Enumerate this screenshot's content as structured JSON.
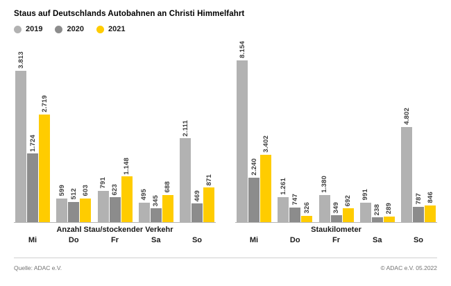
{
  "title": "Staus auf Deutschlands Autobahnen an Christi Himmelfahrt",
  "legend": [
    {
      "label": "2019",
      "color": "#b2b2b2"
    },
    {
      "label": "2020",
      "color": "#8c8c8c"
    },
    {
      "label": "2021",
      "color": "#ffcc00"
    }
  ],
  "chart_data": [
    {
      "type": "bar",
      "title": "Anzahl Stau/stockender Verkehr",
      "categories": [
        "Mi",
        "Do",
        "Fr",
        "Sa",
        "So"
      ],
      "series": [
        {
          "name": "2019",
          "color": "#b2b2b2",
          "values": [
            3813,
            599,
            791,
            495,
            2111
          ],
          "labels": [
            "3.813",
            "599",
            "791",
            "495",
            "2.111"
          ]
        },
        {
          "name": "2020",
          "color": "#8c8c8c",
          "values": [
            1724,
            512,
            623,
            345,
            469
          ],
          "labels": [
            "1.724",
            "512",
            "623",
            "345",
            "469"
          ]
        },
        {
          "name": "2021",
          "color": "#ffcc00",
          "values": [
            2719,
            603,
            1148,
            688,
            871
          ],
          "labels": [
            "2.719",
            "603",
            "1.148",
            "688",
            "871"
          ]
        }
      ],
      "legend_position": "top",
      "grid": false,
      "value_labels_rotated": true
    },
    {
      "type": "bar",
      "title": "Staukilometer",
      "categories": [
        "Mi",
        "Do",
        "Fr",
        "Sa",
        "So"
      ],
      "series": [
        {
          "name": "2019",
          "color": "#b2b2b2",
          "values": [
            8154,
            1261,
            1380,
            991,
            4802
          ],
          "labels": [
            "8.154",
            "1.261",
            "1.380",
            "991",
            "4.802"
          ]
        },
        {
          "name": "2020",
          "color": "#8c8c8c",
          "values": [
            2240,
            747,
            349,
            238,
            787
          ],
          "labels": [
            "2.240",
            "747",
            "349",
            "238",
            "787"
          ]
        },
        {
          "name": "2021",
          "color": "#ffcc00",
          "values": [
            3402,
            326,
            692,
            289,
            846
          ],
          "labels": [
            "3.402",
            "326",
            "692",
            "289",
            "846"
          ]
        }
      ],
      "legend_position": "top",
      "grid": false,
      "value_labels_rotated": true
    }
  ],
  "footer": {
    "source": "Quelle: ADAC e.V.",
    "copyright": "© ADAC e.V. 05.2022"
  }
}
